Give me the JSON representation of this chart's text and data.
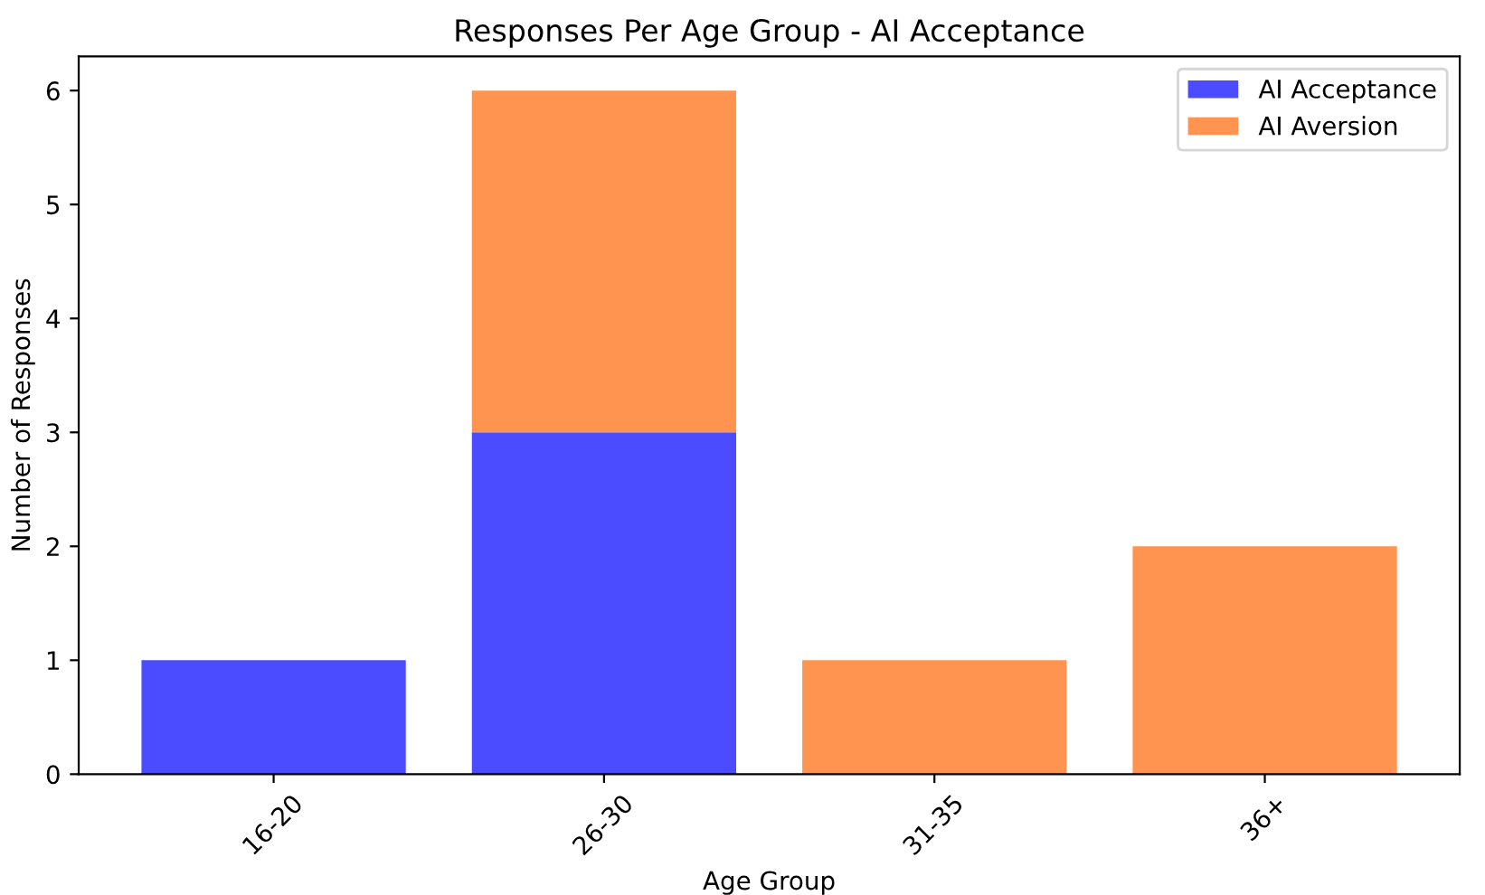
{
  "chart_data": {
    "type": "bar",
    "title": "Responses Per Age Group - AI Acceptance",
    "xlabel": "Age Group",
    "ylabel": "Number of Responses",
    "categories": [
      "16-20",
      "26-30",
      "31-35",
      "36+"
    ],
    "series": [
      {
        "name": "AI Acceptance",
        "color": "#4b4bff",
        "values": [
          1,
          3,
          0,
          0
        ]
      },
      {
        "name": "AI Aversion",
        "color": "#ff9450",
        "values": [
          0,
          3,
          1,
          2
        ]
      }
    ],
    "stacked": true,
    "ylim": [
      0,
      6.3
    ],
    "yticks": [
      0,
      1,
      2,
      3,
      4,
      5,
      6
    ],
    "grid": false,
    "legend": "top right"
  }
}
